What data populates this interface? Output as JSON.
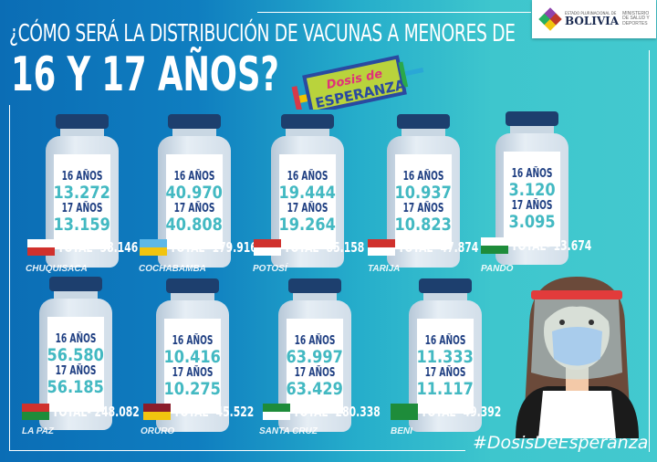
{
  "header": {
    "title_line1": "¿CÓMO SERÁ LA DISTRIBUCIÓN DE VACUNAS A MENORES DE",
    "title_line2": "16 Y 17 AÑOS?"
  },
  "logo": {
    "state": "ESTADO PLURINACIONAL DE",
    "name": "BOLIVIA",
    "ministry": "MINISTERIO DE SALUD Y DEPORTES"
  },
  "campaign": {
    "line1": "Dosis de",
    "line2": "ESPERANZA"
  },
  "labels": {
    "age16": "16 AÑOS",
    "age17": "17 AÑOS"
  },
  "departments": [
    {
      "name": "CHUQUISACA",
      "age16": "13.272",
      "age17": "13.159",
      "total": "TOTAL- 58.146",
      "flag_colors": [
        "#ffffff",
        "#d0312d"
      ]
    },
    {
      "name": "COCHABAMBA",
      "age16": "40.970",
      "age17": "40.808",
      "total": "TOTAL- 179.916",
      "flag_colors": [
        "#5db8e8",
        "#f1c40f"
      ]
    },
    {
      "name": "POTOSÍ",
      "age16": "19.444",
      "age17": "19.264",
      "total": "TOTAL- 85.158",
      "flag_colors": [
        "#d0312d",
        "#ffffff"
      ]
    },
    {
      "name": "TARIJA",
      "age16": "10.937",
      "age17": "10.823",
      "total": "TOTAL- 47.874",
      "flag_colors": [
        "#d0312d",
        "#ffffff"
      ]
    },
    {
      "name": "PANDO",
      "age16": "3.120",
      "age17": "3.095",
      "total": "TOTAL- 13.674",
      "flag_colors": [
        "#ffffff",
        "#1e8c3a"
      ]
    },
    {
      "name": "LA PAZ",
      "age16": "56.580",
      "age17": "56.185",
      "total": "TOTAL- 248.082",
      "flag_colors": [
        "#d0312d",
        "#1e8c3a"
      ]
    },
    {
      "name": "ORURO",
      "age16": "10.416",
      "age17": "10.275",
      "total": "TOTAL- 45.522",
      "flag_colors": [
        "#8b1c2a",
        "#f1c40f"
      ]
    },
    {
      "name": "SANTA CRUZ",
      "age16": "63.997",
      "age17": "63.429",
      "total": "TOTAL- 280.338",
      "flag_colors": [
        "#1e8c3a",
        "#ffffff"
      ]
    },
    {
      "name": "BENI",
      "age16": "11.333",
      "age17": "11.117",
      "total": "TOTAL- 49.392",
      "flag_colors": [
        "#1e8c3a",
        "#1e8c3a"
      ]
    }
  ],
  "hashtag": "#DosisDeEsperanza"
}
